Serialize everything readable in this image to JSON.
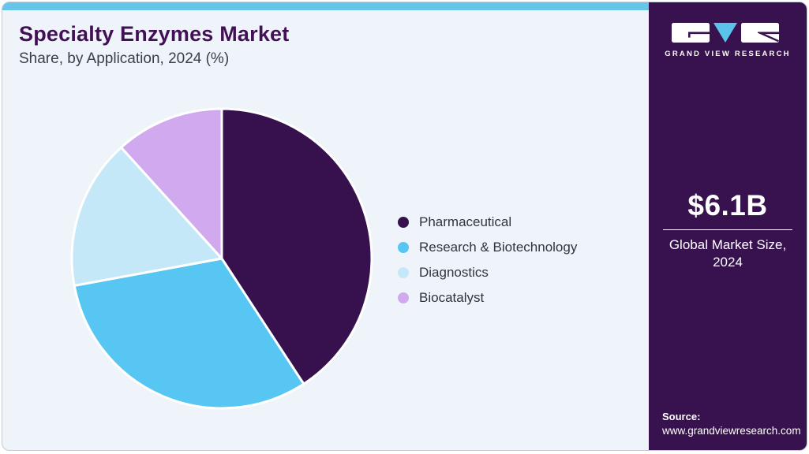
{
  "header": {
    "title": "Specialty Enzymes Market",
    "subtitle": "Share, by Application, 2024 (%)"
  },
  "brand": {
    "name": "GRAND VIEW RESEARCH",
    "logo_icon": "gvr-logo",
    "logo_accent": "#5bc2ea"
  },
  "sidebar": {
    "market_size_value": "$6.1B",
    "market_size_label_line1": "Global Market Size,",
    "market_size_label_line2": "2024",
    "source_label": "Source:",
    "source_url": "www.grandviewresearch.com"
  },
  "chart_data": {
    "type": "pie",
    "title": "Specialty Enzymes Market Share, by Application, 2024 (%)",
    "categories": [
      "Pharmaceutical",
      "Research & Biotechnology",
      "Diagnostics",
      "Biocatalyst"
    ],
    "values": [
      40.8,
      31.3,
      16.2,
      11.7
    ],
    "units": "%",
    "colors": [
      "#37114d",
      "#58c6f2",
      "#c5e8f9",
      "#d0a9ee"
    ],
    "start_angle_deg": 0,
    "direction": "clockwise",
    "legend_position": "right",
    "slice_border_color": "#ffffff",
    "labels_shown": false
  },
  "theme": {
    "card_background": "#eff4fa",
    "top_strip": "#67c5ea",
    "sidebar_background": "#38124f",
    "title_color": "#421155",
    "subtitle_color": "#3a4046",
    "legend_text_color": "#2f353b"
  }
}
